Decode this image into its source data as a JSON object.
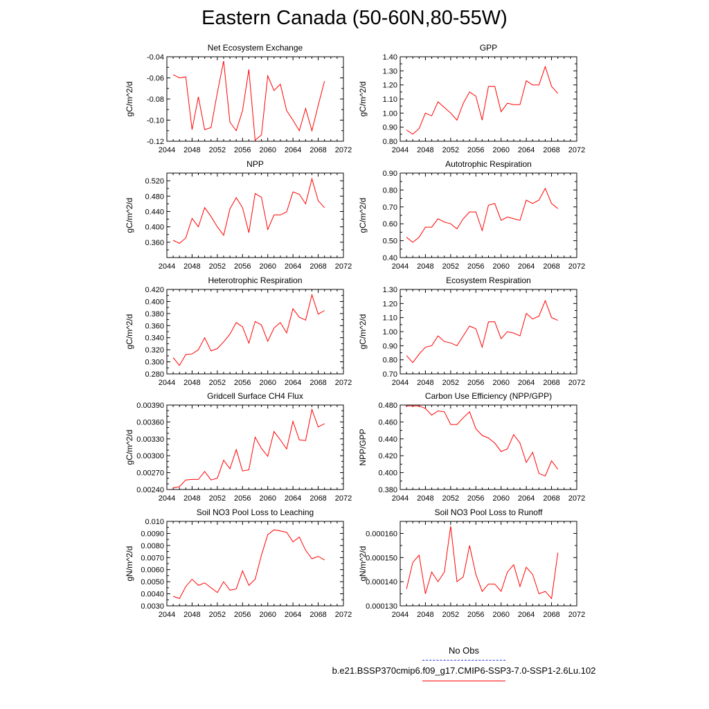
{
  "title": "Eastern Canada (50-60N,80-55W)",
  "legend": {
    "obs_label": "No Obs",
    "obs_color": "#2a3cd6",
    "case_label": "b.e21.BSSP370cmip6.f09_g17.CMIP6-SSP3-7.0-SSP1-2.6Lu.102",
    "case_color": "#ff0000"
  },
  "chart_data": [
    {
      "type": "line",
      "id": "nee",
      "title": "Net Ecosystem Exchange",
      "ylabel": "gC/m^2/d",
      "xlim": [
        2044,
        2072
      ],
      "ylim": [
        -0.12,
        -0.04
      ],
      "xticks": [
        2044,
        2048,
        2052,
        2056,
        2060,
        2064,
        2068,
        2072
      ],
      "xtick_labels": [
        "2044",
        "2048",
        "2052",
        "2056",
        "2060",
        "2064",
        "2068",
        "2072"
      ],
      "yticks": [
        -0.12,
        -0.1,
        -0.08,
        -0.06,
        -0.04
      ],
      "ytick_labels": [
        "-0.12",
        "-0.10",
        "-0.08",
        "-0.06",
        "-0.04"
      ],
      "yminor": [
        -0.11,
        -0.09,
        -0.07,
        -0.05
      ],
      "x": [
        2045,
        2046,
        2047,
        2048,
        2049,
        2050,
        2051,
        2052,
        2053,
        2054,
        2055,
        2056,
        2057,
        2058,
        2059,
        2060,
        2061,
        2062,
        2063,
        2064,
        2065,
        2066,
        2067,
        2068,
        2069
      ],
      "y": [
        -0.057,
        -0.06,
        -0.059,
        -0.109,
        -0.078,
        -0.109,
        -0.107,
        -0.074,
        -0.044,
        -0.102,
        -0.11,
        -0.091,
        -0.052,
        -0.119,
        -0.114,
        -0.058,
        -0.072,
        -0.066,
        -0.091,
        -0.1,
        -0.11,
        -0.089,
        -0.11,
        -0.086,
        -0.063
      ]
    },
    {
      "type": "line",
      "id": "gpp",
      "title": "GPP",
      "ylabel": "gC/m^2/d",
      "xlim": [
        2044,
        2072
      ],
      "ylim": [
        0.8,
        1.4
      ],
      "xticks": [
        2044,
        2048,
        2052,
        2056,
        2060,
        2064,
        2068,
        2072
      ],
      "xtick_labels": [
        "2044",
        "2048",
        "2052",
        "2056",
        "2060",
        "2064",
        "2068",
        "2072"
      ],
      "yticks": [
        0.8,
        0.9,
        1.0,
        1.1,
        1.2,
        1.3,
        1.4
      ],
      "ytick_labels": [
        "0.80",
        "0.90",
        "1.00",
        "1.10",
        "1.20",
        "1.30",
        "1.40"
      ],
      "yminor": [
        0.85,
        0.95,
        1.05,
        1.15,
        1.25,
        1.35
      ],
      "x": [
        2045,
        2046,
        2047,
        2048,
        2049,
        2050,
        2051,
        2052,
        2053,
        2054,
        2055,
        2056,
        2057,
        2058,
        2059,
        2060,
        2061,
        2062,
        2063,
        2064,
        2065,
        2066,
        2067,
        2068,
        2069
      ],
      "y": [
        0.88,
        0.85,
        0.89,
        1.0,
        0.98,
        1.08,
        1.04,
        1.0,
        0.95,
        1.07,
        1.15,
        1.12,
        0.95,
        1.19,
        1.19,
        1.01,
        1.07,
        1.06,
        1.06,
        1.23,
        1.2,
        1.2,
        1.33,
        1.19,
        1.14
      ]
    },
    {
      "type": "line",
      "id": "npp",
      "title": "NPP",
      "ylabel": "gC/m^2/d",
      "xlim": [
        2044,
        2072
      ],
      "ylim": [
        0.32,
        0.54
      ],
      "xticks": [
        2044,
        2048,
        2052,
        2056,
        2060,
        2064,
        2068,
        2072
      ],
      "xtick_labels": [
        "2044",
        "2048",
        "2052",
        "2056",
        "2060",
        "2064",
        "2068",
        "2072"
      ],
      "yticks": [
        0.36,
        0.4,
        0.44,
        0.48,
        0.52
      ],
      "ytick_labels": [
        "0.360",
        "0.400",
        "0.440",
        "0.480",
        "0.520"
      ],
      "yminor": [
        0.34,
        0.38,
        0.42,
        0.46,
        0.5
      ],
      "x": [
        2045,
        2046,
        2047,
        2048,
        2049,
        2050,
        2051,
        2052,
        2053,
        2054,
        2055,
        2056,
        2057,
        2058,
        2059,
        2060,
        2061,
        2062,
        2063,
        2064,
        2065,
        2066,
        2067,
        2068,
        2069
      ],
      "y": [
        0.365,
        0.357,
        0.371,
        0.422,
        0.4,
        0.45,
        0.427,
        0.4,
        0.378,
        0.447,
        0.476,
        0.45,
        0.385,
        0.487,
        0.477,
        0.393,
        0.431,
        0.431,
        0.439,
        0.491,
        0.485,
        0.46,
        0.525,
        0.468,
        0.45
      ]
    },
    {
      "type": "line",
      "id": "ar",
      "title": "Autotrophic Respiration",
      "ylabel": "gC/m^2/d",
      "xlim": [
        2044,
        2072
      ],
      "ylim": [
        0.4,
        0.9
      ],
      "xticks": [
        2044,
        2048,
        2052,
        2056,
        2060,
        2064,
        2068,
        2072
      ],
      "xtick_labels": [
        "2044",
        "2048",
        "2052",
        "2056",
        "2060",
        "2064",
        "2068",
        "2072"
      ],
      "yticks": [
        0.4,
        0.5,
        0.6,
        0.7,
        0.8,
        0.9
      ],
      "ytick_labels": [
        "0.40",
        "0.50",
        "0.60",
        "0.70",
        "0.80",
        "0.90"
      ],
      "yminor": [
        0.45,
        0.55,
        0.65,
        0.75,
        0.85
      ],
      "x": [
        2045,
        2046,
        2047,
        2048,
        2049,
        2050,
        2051,
        2052,
        2053,
        2054,
        2055,
        2056,
        2057,
        2058,
        2059,
        2060,
        2061,
        2062,
        2063,
        2064,
        2065,
        2066,
        2067,
        2068,
        2069
      ],
      "y": [
        0.52,
        0.49,
        0.52,
        0.58,
        0.58,
        0.63,
        0.61,
        0.6,
        0.57,
        0.63,
        0.67,
        0.67,
        0.56,
        0.71,
        0.72,
        0.62,
        0.64,
        0.63,
        0.62,
        0.74,
        0.72,
        0.74,
        0.81,
        0.72,
        0.69
      ]
    },
    {
      "type": "line",
      "id": "hr",
      "title": "Heterotrophic Respiration",
      "ylabel": "gC/m^2/d",
      "xlim": [
        2044,
        2072
      ],
      "ylim": [
        0.28,
        0.42
      ],
      "xticks": [
        2044,
        2048,
        2052,
        2056,
        2060,
        2064,
        2068,
        2072
      ],
      "xtick_labels": [
        "2044",
        "2048",
        "2052",
        "2056",
        "2060",
        "2064",
        "2068",
        "2072"
      ],
      "yticks": [
        0.28,
        0.3,
        0.32,
        0.34,
        0.36,
        0.38,
        0.4,
        0.42
      ],
      "ytick_labels": [
        "0.280",
        "0.300",
        "0.320",
        "0.340",
        "0.360",
        "0.380",
        "0.400",
        "0.420"
      ],
      "yminor": [
        0.29,
        0.31,
        0.33,
        0.35,
        0.37,
        0.39,
        0.41
      ],
      "x": [
        2045,
        2046,
        2047,
        2048,
        2049,
        2050,
        2051,
        2052,
        2053,
        2054,
        2055,
        2056,
        2057,
        2058,
        2059,
        2060,
        2061,
        2062,
        2063,
        2064,
        2065,
        2066,
        2067,
        2068,
        2069
      ],
      "y": [
        0.307,
        0.294,
        0.312,
        0.313,
        0.32,
        0.34,
        0.318,
        0.322,
        0.333,
        0.346,
        0.365,
        0.358,
        0.331,
        0.367,
        0.361,
        0.334,
        0.356,
        0.365,
        0.348,
        0.388,
        0.374,
        0.369,
        0.411,
        0.379,
        0.385
      ]
    },
    {
      "type": "line",
      "id": "er",
      "title": "Ecosystem Respiration",
      "ylabel": "gC/m^2/d",
      "xlim": [
        2044,
        2072
      ],
      "ylim": [
        0.7,
        1.3
      ],
      "xticks": [
        2044,
        2048,
        2052,
        2056,
        2060,
        2064,
        2068,
        2072
      ],
      "xtick_labels": [
        "2044",
        "2048",
        "2052",
        "2056",
        "2060",
        "2064",
        "2068",
        "2072"
      ],
      "yticks": [
        0.7,
        0.8,
        0.9,
        1.0,
        1.1,
        1.2,
        1.3
      ],
      "ytick_labels": [
        "0.70",
        "0.80",
        "0.90",
        "1.00",
        "1.10",
        "1.20",
        "1.30"
      ],
      "yminor": [
        0.75,
        0.85,
        0.95,
        1.05,
        1.15,
        1.25
      ],
      "x": [
        2045,
        2046,
        2047,
        2048,
        2049,
        2050,
        2051,
        2052,
        2053,
        2054,
        2055,
        2056,
        2057,
        2058,
        2059,
        2060,
        2061,
        2062,
        2063,
        2064,
        2065,
        2066,
        2067,
        2068,
        2069
      ],
      "y": [
        0.83,
        0.78,
        0.84,
        0.89,
        0.9,
        0.97,
        0.93,
        0.92,
        0.9,
        0.97,
        1.04,
        1.02,
        0.89,
        1.07,
        1.07,
        0.95,
        1.0,
        0.99,
        0.97,
        1.13,
        1.09,
        1.11,
        1.22,
        1.1,
        1.08
      ]
    },
    {
      "type": "line",
      "id": "ch4",
      "title": "Gridcell Surface CH4 Flux",
      "ylabel": "gC/m^2/d",
      "xlim": [
        2044,
        2072
      ],
      "ylim": [
        0.0024,
        0.0039
      ],
      "xticks": [
        2044,
        2048,
        2052,
        2056,
        2060,
        2064,
        2068,
        2072
      ],
      "xtick_labels": [
        "2044",
        "2048",
        "2052",
        "2056",
        "2060",
        "2064",
        "2068",
        "2072"
      ],
      "yticks": [
        0.0024,
        0.0027,
        0.003,
        0.0033,
        0.0036,
        0.0039
      ],
      "ytick_labels": [
        "0.00240",
        "0.00270",
        "0.00300",
        "0.00330",
        "0.00360",
        "0.00390"
      ],
      "yminor": [
        0.0025,
        0.0026,
        0.0028,
        0.0029,
        0.0031,
        0.0032,
        0.0034,
        0.0035,
        0.0037,
        0.0038
      ],
      "x": [
        2045,
        2046,
        2047,
        2048,
        2049,
        2050,
        2051,
        2052,
        2053,
        2054,
        2055,
        2056,
        2057,
        2058,
        2059,
        2060,
        2061,
        2062,
        2063,
        2064,
        2065,
        2066,
        2067,
        2068,
        2069
      ],
      "y": [
        0.00243,
        0.00245,
        0.00257,
        0.00258,
        0.00258,
        0.00272,
        0.00257,
        0.0026,
        0.00292,
        0.00277,
        0.00311,
        0.00273,
        0.00275,
        0.00333,
        0.00313,
        0.00299,
        0.00343,
        0.00328,
        0.00312,
        0.00361,
        0.00328,
        0.00327,
        0.00382,
        0.00351,
        0.00357
      ]
    },
    {
      "type": "line",
      "id": "cue",
      "title": "Carbon Use Efficiency (NPP/GPP)",
      "ylabel": "NPP/GPP",
      "xlim": [
        2044,
        2072
      ],
      "ylim": [
        0.38,
        0.48
      ],
      "xticks": [
        2044,
        2048,
        2052,
        2056,
        2060,
        2064,
        2068,
        2072
      ],
      "xtick_labels": [
        "2044",
        "2048",
        "2052",
        "2056",
        "2060",
        "2064",
        "2068",
        "2072"
      ],
      "yticks": [
        0.38,
        0.4,
        0.42,
        0.44,
        0.46,
        0.48
      ],
      "ytick_labels": [
        "0.380",
        "0.400",
        "0.420",
        "0.440",
        "0.460",
        "0.480"
      ],
      "yminor": [
        0.39,
        0.41,
        0.43,
        0.45,
        0.47
      ],
      "x": [
        2045,
        2046,
        2047,
        2048,
        2049,
        2050,
        2051,
        2052,
        2053,
        2054,
        2055,
        2056,
        2057,
        2058,
        2059,
        2060,
        2061,
        2062,
        2063,
        2064,
        2065,
        2066,
        2067,
        2068,
        2069
      ],
      "y": [
        0.479,
        0.479,
        0.479,
        0.476,
        0.468,
        0.473,
        0.472,
        0.457,
        0.457,
        0.465,
        0.472,
        0.452,
        0.444,
        0.441,
        0.435,
        0.425,
        0.428,
        0.445,
        0.435,
        0.412,
        0.424,
        0.399,
        0.396,
        0.414,
        0.404
      ]
    },
    {
      "type": "line",
      "id": "leach",
      "title": "Soil NO3 Pool Loss to Leaching",
      "ylabel": "gN/m^2/d",
      "xlim": [
        2044,
        2072
      ],
      "ylim": [
        0.003,
        0.01
      ],
      "xticks": [
        2044,
        2048,
        2052,
        2056,
        2060,
        2064,
        2068,
        2072
      ],
      "xtick_labels": [
        "2044",
        "2048",
        "2052",
        "2056",
        "2060",
        "2064",
        "2068",
        "2072"
      ],
      "yticks": [
        0.003,
        0.004,
        0.005,
        0.006,
        0.007,
        0.008,
        0.009,
        0.01
      ],
      "ytick_labels": [
        "0.0030",
        "0.0040",
        "0.0050",
        "0.0060",
        "0.0070",
        "0.0080",
        "0.0090",
        "0.010"
      ],
      "yminor": [
        0.0035,
        0.0045,
        0.0055,
        0.0065,
        0.0075,
        0.0085,
        0.0095
      ],
      "x": [
        2045,
        2046,
        2047,
        2048,
        2049,
        2050,
        2051,
        2052,
        2053,
        2054,
        2055,
        2056,
        2057,
        2058,
        2059,
        2060,
        2061,
        2062,
        2063,
        2064,
        2065,
        2066,
        2067,
        2068,
        2069
      ],
      "y": [
        0.0038,
        0.0036,
        0.0046,
        0.0052,
        0.0047,
        0.0049,
        0.0045,
        0.0041,
        0.005,
        0.0043,
        0.0044,
        0.0059,
        0.0047,
        0.0052,
        0.0072,
        0.0089,
        0.0093,
        0.0092,
        0.0091,
        0.0083,
        0.0087,
        0.0076,
        0.0069,
        0.0071,
        0.0068
      ]
    },
    {
      "type": "line",
      "id": "runoff",
      "title": "Soil NO3 Pool Loss to Runoff",
      "ylabel": "gN/m^2/d",
      "xlim": [
        2044,
        2072
      ],
      "ylim": [
        0.00013,
        0.000165
      ],
      "xticks": [
        2044,
        2048,
        2052,
        2056,
        2060,
        2064,
        2068,
        2072
      ],
      "xtick_labels": [
        "2044",
        "2048",
        "2052",
        "2056",
        "2060",
        "2064",
        "2068",
        "2072"
      ],
      "yticks": [
        0.00013,
        0.00014,
        0.00015,
        0.00016
      ],
      "ytick_labels": [
        "0.000130",
        "0.000140",
        "0.000150",
        "0.000160"
      ],
      "yminor": [
        0.000135,
        0.000145,
        0.000155
      ],
      "x": [
        2045,
        2046,
        2047,
        2048,
        2049,
        2050,
        2051,
        2052,
        2053,
        2054,
        2055,
        2056,
        2057,
        2058,
        2059,
        2060,
        2061,
        2062,
        2063,
        2064,
        2065,
        2066,
        2067,
        2068,
        2069
      ],
      "y": [
        0.000137,
        0.000148,
        0.000151,
        0.000135,
        0.000144,
        0.00014,
        0.000144,
        0.000163,
        0.00014,
        0.000142,
        0.000155,
        0.000143,
        0.000136,
        0.000139,
        0.000139,
        0.000136,
        0.000144,
        0.000147,
        0.000138,
        0.000146,
        0.000143,
        0.000135,
        0.000136,
        0.000133,
        0.000152
      ]
    }
  ]
}
